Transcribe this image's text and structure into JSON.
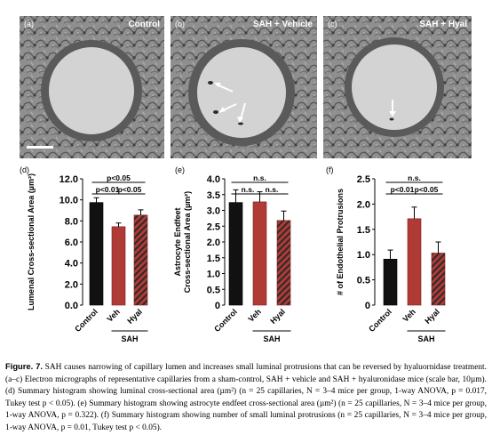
{
  "micrographs": [
    {
      "letter": "(a)",
      "title": "Control"
    },
    {
      "letter": "(b)",
      "title": "SAH + Vehicle"
    },
    {
      "letter": "(c)",
      "title": "SAH + Hyal"
    }
  ],
  "chart_data": [
    {
      "type": "bar",
      "panel": "(d)",
      "categories": [
        "Control",
        "Veh",
        "Hyal"
      ],
      "group_label": "SAH",
      "values": [
        9.75,
        7.45,
        8.55
      ],
      "errors": [
        0.45,
        0.35,
        0.5
      ],
      "ylabel": "Lumenal Cross-sectional Area (µm²)",
      "ylim": [
        0,
        12
      ],
      "yticks": [
        "0.0",
        "2.0",
        "4.0",
        "6.0",
        "8.0",
        "10.0",
        "12.0"
      ],
      "significance": [
        {
          "label": "p<0.05",
          "from": 0,
          "to": 2,
          "level": 2
        },
        {
          "label": "p<0.01",
          "from": 0,
          "to": 1,
          "level": 1
        },
        {
          "label": "p<0.05",
          "from": 1,
          "to": 2,
          "level": 1
        }
      ]
    },
    {
      "type": "bar",
      "panel": "(e)",
      "categories": [
        "Control",
        "Veh",
        "Hyal"
      ],
      "group_label": "SAH",
      "values": [
        3.25,
        3.27,
        2.68
      ],
      "errors": [
        0.4,
        0.32,
        0.3
      ],
      "ylabel": "Astrocyte Endfeet\nCross-sectional Area (µm²)",
      "ylim": [
        0,
        4
      ],
      "yticks": [
        "0",
        "0.5",
        "1.0",
        "1.5",
        "2.0",
        "2.5",
        "3.0",
        "3.5",
        "4.0"
      ],
      "significance": [
        {
          "label": "n.s.",
          "from": 0,
          "to": 2,
          "level": 2
        },
        {
          "label": "n.s.",
          "from": 0,
          "to": 1,
          "level": 1
        },
        {
          "label": "n.s.",
          "from": 1,
          "to": 2,
          "level": 1
        }
      ]
    },
    {
      "type": "bar",
      "panel": "(f)",
      "categories": [
        "Control",
        "Veh",
        "Hyal"
      ],
      "group_label": "SAH",
      "values": [
        0.91,
        1.71,
        1.03
      ],
      "errors": [
        0.18,
        0.23,
        0.22
      ],
      "ylabel": "# of Endothelial Protrusions",
      "ylim": [
        0,
        2.5
      ],
      "yticks": [
        "0",
        "0.5",
        "1.0",
        "1.5",
        "2.0",
        "2.5"
      ],
      "significance": [
        {
          "label": "n.s.",
          "from": 0,
          "to": 2,
          "level": 2
        },
        {
          "label": "p<0.01",
          "from": 0,
          "to": 1,
          "level": 1
        },
        {
          "label": "p<0.05",
          "from": 1,
          "to": 2,
          "level": 1
        }
      ]
    }
  ],
  "bar_colors": [
    "#111111",
    "#b03a36",
    "#b03a36"
  ],
  "caption": {
    "label": "Figure. 7.",
    "text": "SAH causes narrowing of capillary lumen and increases small luminal protrusions that can be reversed by hyaluornidase treatment. (a–c) Electron micrographs of representative capillaries from a sham-control, SAH + vehicle and SAH + hyaluronidase mice (scale bar, 10µm). (d) Summary histogram showing luminal cross-sectional area (µm²) (n = 25 capillaries, N = 3–4 mice per group, 1-way ANOVA, p = 0.017, Tukey test p < 0.05). (e) Summary histogram showing astrocyte endfeet cross-sectional area (µm²) (n = 25 capillaries, N = 3–4 mice per group, 1-way ANOVA, p = 0.322). (f) Summary histogram showing number of small luminal protrusions (n = 25 capillaries, N = 3–4 mice per group, 1-way ANOVA, p = 0.01, Tukey test p < 0.05)."
  }
}
